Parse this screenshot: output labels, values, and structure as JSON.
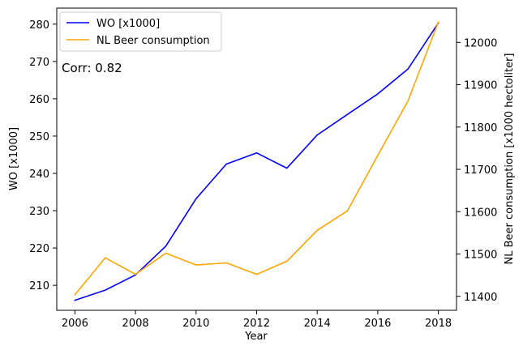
{
  "chart_data": {
    "type": "line",
    "title": "",
    "xlabel": "Year",
    "ylabel_left": "WO [x1000]",
    "ylabel_right": "NL Beer consumption [x1000 hectoliter]",
    "annotation": "Corr: 0.82",
    "legend": "top-left",
    "grid": false,
    "x": [
      2006,
      2007,
      2008,
      2009,
      2010,
      2011,
      2012,
      2013,
      2014,
      2015,
      2016,
      2017,
      2018
    ],
    "xlim": [
      2005.4,
      2018.6
    ],
    "x_ticks": [
      2006,
      2008,
      2010,
      2012,
      2014,
      2016,
      2018
    ],
    "y_left_lim": [
      203.3,
      284.3
    ],
    "y_left_ticks": [
      210,
      220,
      230,
      240,
      250,
      260,
      270,
      280
    ],
    "y_right_lim": [
      11367,
      12081
    ],
    "y_right_ticks": [
      11400,
      11500,
      11600,
      11700,
      11800,
      11900,
      12000
    ],
    "series": [
      {
        "name": "WO [x1000]",
        "axis": "left",
        "color": "#0000ff",
        "values": [
          206.0,
          208.7,
          212.8,
          220.5,
          233.2,
          242.5,
          245.5,
          241.4,
          250.3,
          255.8,
          261.3,
          268.0,
          280.3
        ]
      },
      {
        "name": "NL Beer consumption",
        "axis": "right",
        "color": "#ffa500",
        "values": [
          11404,
          11491,
          11452,
          11502,
          11474,
          11479,
          11452,
          11483,
          11556,
          11602,
          11733,
          11862,
          12048
        ]
      }
    ]
  }
}
